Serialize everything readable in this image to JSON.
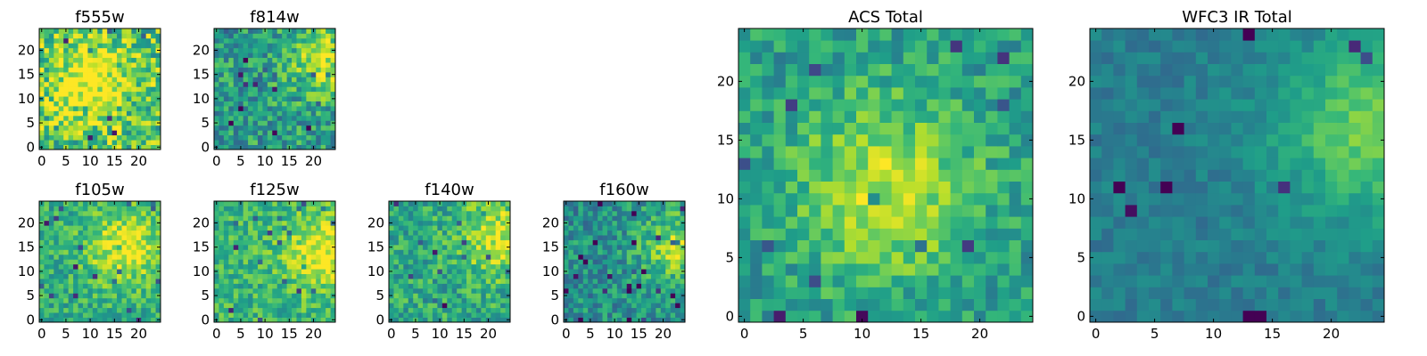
{
  "chart_data": [
    {
      "id": "f555w",
      "type": "heatmap",
      "title": "f555w",
      "size": 25,
      "seed": 11,
      "xticks": [
        "0",
        "5",
        "10",
        "15",
        "20"
      ],
      "yticks": [
        "0",
        "5",
        "10",
        "15",
        "20"
      ],
      "xlim": [
        0,
        24
      ],
      "ylim": [
        0,
        24
      ],
      "colormap": "viridis",
      "base_level": 0.72,
      "noise": 0.55,
      "bright_spot": [
        10,
        14
      ]
    },
    {
      "id": "f814w",
      "type": "heatmap",
      "title": "f814w",
      "size": 25,
      "seed": 23,
      "xticks": [
        "0",
        "5",
        "10",
        "15",
        "20"
      ],
      "yticks": [
        "0",
        "5",
        "10",
        "15",
        "20"
      ],
      "xlim": [
        0,
        24
      ],
      "ylim": [
        0,
        24
      ],
      "colormap": "viridis",
      "base_level": 0.55,
      "noise": 0.45,
      "bright_spot": [
        23,
        18
      ]
    },
    {
      "id": "f105w",
      "type": "heatmap",
      "title": "f105w",
      "size": 25,
      "seed": 37,
      "xticks": [
        "0",
        "5",
        "10",
        "15",
        "20"
      ],
      "yticks": [
        "0",
        "5",
        "10",
        "15",
        "20"
      ],
      "xlim": [
        0,
        24
      ],
      "ylim": [
        0,
        24
      ],
      "colormap": "viridis",
      "base_level": 0.62,
      "noise": 0.35,
      "bright_spot": [
        17,
        15
      ]
    },
    {
      "id": "f125w",
      "type": "heatmap",
      "title": "f125w",
      "size": 25,
      "seed": 41,
      "xticks": [
        "0",
        "5",
        "10",
        "15",
        "20"
      ],
      "yticks": [
        "0",
        "5",
        "10",
        "15",
        "20"
      ],
      "xlim": [
        0,
        24
      ],
      "ylim": [
        0,
        24
      ],
      "colormap": "viridis",
      "base_level": 0.65,
      "noise": 0.35,
      "bright_spot": [
        22,
        14
      ]
    },
    {
      "id": "f140w",
      "type": "heatmap",
      "title": "f140w",
      "size": 25,
      "seed": 53,
      "xticks": [
        "0",
        "5",
        "10",
        "15",
        "20"
      ],
      "yticks": [
        "0",
        "5",
        "10",
        "15",
        "20"
      ],
      "xlim": [
        0,
        24
      ],
      "ylim": [
        0,
        24
      ],
      "colormap": "viridis",
      "base_level": 0.6,
      "noise": 0.38,
      "bright_spot": [
        22,
        17
      ]
    },
    {
      "id": "f160w",
      "type": "heatmap",
      "title": "f160w",
      "size": 25,
      "seed": 67,
      "xticks": [
        "0",
        "5",
        "10",
        "15",
        "20"
      ],
      "yticks": [
        "0",
        "5",
        "10",
        "15",
        "20"
      ],
      "xlim": [
        0,
        24
      ],
      "ylim": [
        0,
        24
      ],
      "colormap": "viridis",
      "base_level": 0.5,
      "noise": 0.38,
      "bright_spot": [
        23,
        15
      ]
    },
    {
      "id": "acs-total",
      "type": "heatmap",
      "title": "ACS Total",
      "size": 25,
      "seed": 79,
      "xticks": [
        "0",
        "5",
        "10",
        "15",
        "20"
      ],
      "yticks": [
        "0",
        "5",
        "10",
        "15",
        "20"
      ],
      "xlim": [
        0,
        24
      ],
      "ylim": [
        0,
        24
      ],
      "colormap": "viridis",
      "base_level": 0.55,
      "noise": 0.32,
      "bright_spot": [
        12,
        11
      ]
    },
    {
      "id": "wfc3-ir-total",
      "type": "heatmap",
      "title": "WFC3 IR Total",
      "size": 25,
      "seed": 97,
      "xticks": [
        "0",
        "5",
        "10",
        "15",
        "20"
      ],
      "yticks": [
        "0",
        "5",
        "10",
        "15",
        "20"
      ],
      "xlim": [
        0,
        24
      ],
      "ylim": [
        0,
        24
      ],
      "colormap": "viridis",
      "base_level": 0.42,
      "noise": 0.16,
      "bright_spot": [
        23,
        16
      ]
    }
  ]
}
